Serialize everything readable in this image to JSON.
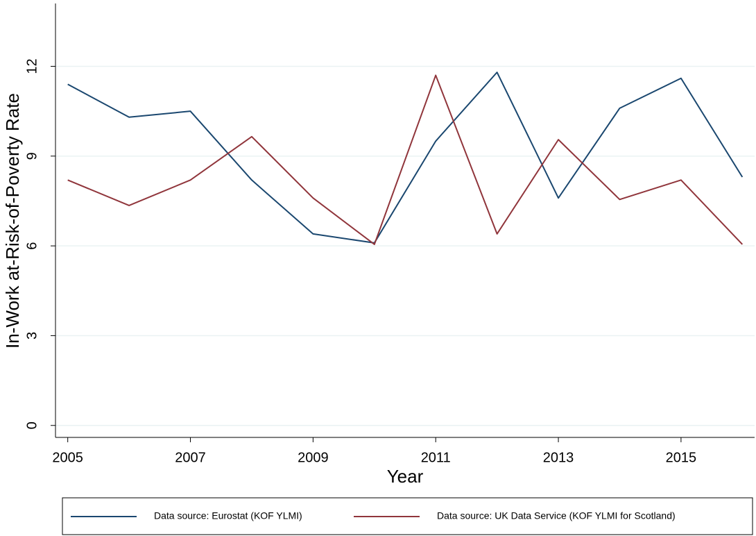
{
  "chart_data": {
    "type": "line",
    "x_label": "Year",
    "y_label": "In-Work at-Risk-of-Poverty Rate",
    "x": [
      2005,
      2006,
      2007,
      2008,
      2009,
      2010,
      2011,
      2012,
      2013,
      2014,
      2015,
      2016
    ],
    "series": [
      {
        "name": "Data source: Eurostat (KOF YLMI)",
        "color": "#1a476f",
        "values": [
          11.4,
          10.3,
          10.5,
          8.2,
          6.4,
          6.1,
          9.5,
          11.8,
          7.6,
          10.6,
          11.6,
          8.3
        ]
      },
      {
        "name": "Data source: UK Data Service (KOF YLMI for Scotland)",
        "color": "#90353b",
        "values": [
          8.2,
          7.35,
          8.2,
          9.65,
          7.6,
          6.05,
          11.7,
          6.4,
          9.55,
          7.55,
          8.2,
          6.05
        ]
      }
    ],
    "xlim": [
      2004.8,
      2016.2
    ],
    "ylim": [
      -0.4,
      14.1
    ],
    "xticks": [
      2005,
      2007,
      2009,
      2011,
      2013,
      2015
    ],
    "yticks": [
      0,
      3,
      6,
      9,
      12
    ],
    "grid": true,
    "legend": "bottom"
  }
}
